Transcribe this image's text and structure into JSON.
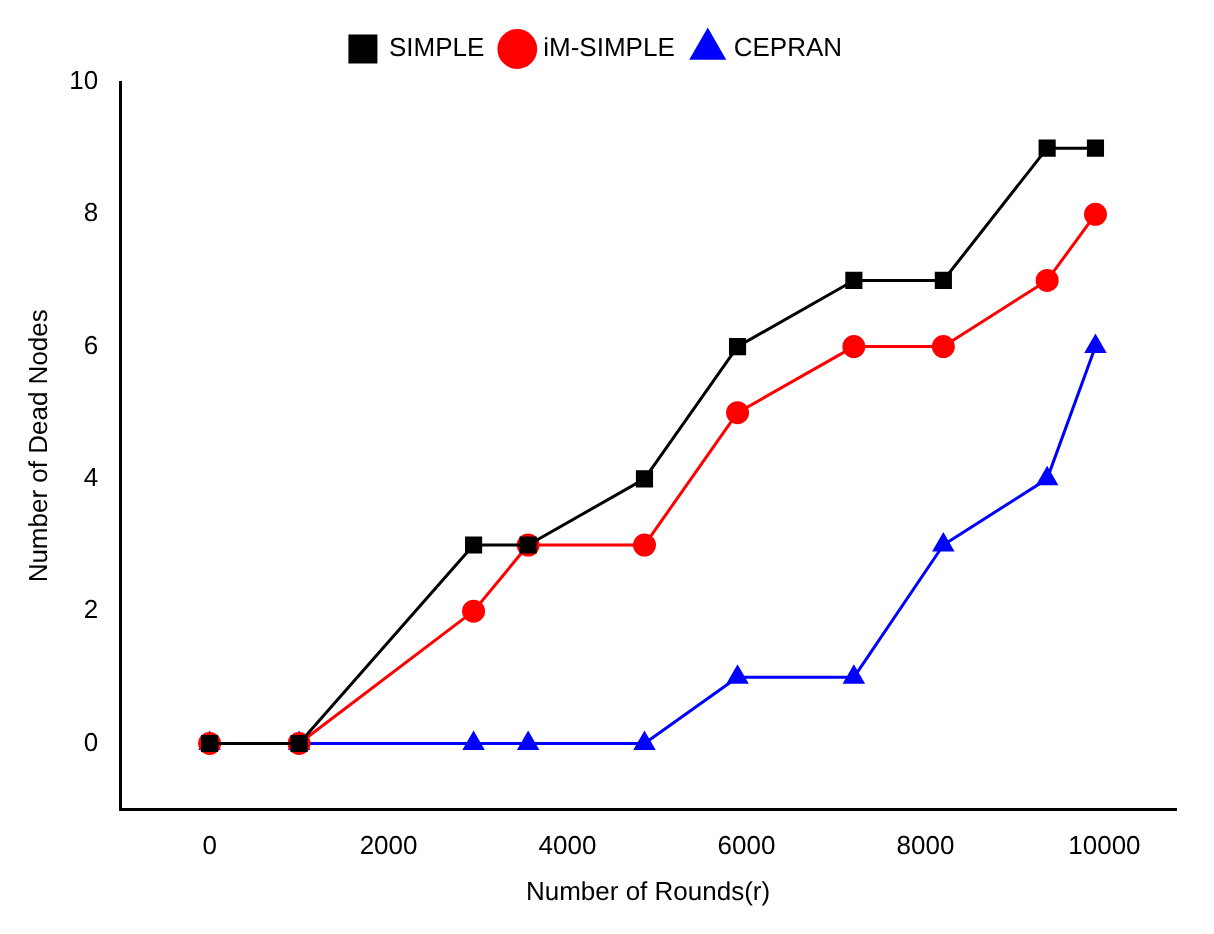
{
  "chart_data": {
    "type": "line",
    "xlabel": "Number of Rounds(r)",
    "ylabel": "Number of Dead Nodes",
    "x": [
      0,
      1000,
      2950,
      3560,
      4860,
      5900,
      7200,
      8200,
      9360,
      9900
    ],
    "series": [
      {
        "name": "SIMPLE",
        "color": "#000000",
        "marker": "square",
        "values": [
          0,
          0,
          3,
          3,
          4,
          6,
          7,
          7,
          9,
          9
        ]
      },
      {
        "name": "iM-SIMPLE",
        "color": "#ff0000",
        "marker": "circle",
        "values": [
          0,
          0,
          2,
          3,
          3,
          5,
          6,
          6,
          7,
          8
        ]
      },
      {
        "name": "CEPRAN",
        "color": "#0000ff",
        "marker": "triangle",
        "values": [
          0,
          0,
          0,
          0,
          0,
          1,
          1,
          3,
          4,
          6
        ]
      }
    ],
    "xlim": [
      -1000,
      10800
    ],
    "xticks": [
      0,
      2000,
      4000,
      6000,
      8000,
      10000
    ],
    "ylim": [
      -1,
      10
    ],
    "yticks": [
      0,
      2,
      4,
      6,
      8,
      10
    ],
    "grid": false,
    "legend": "top",
    "line_style": "solid"
  }
}
